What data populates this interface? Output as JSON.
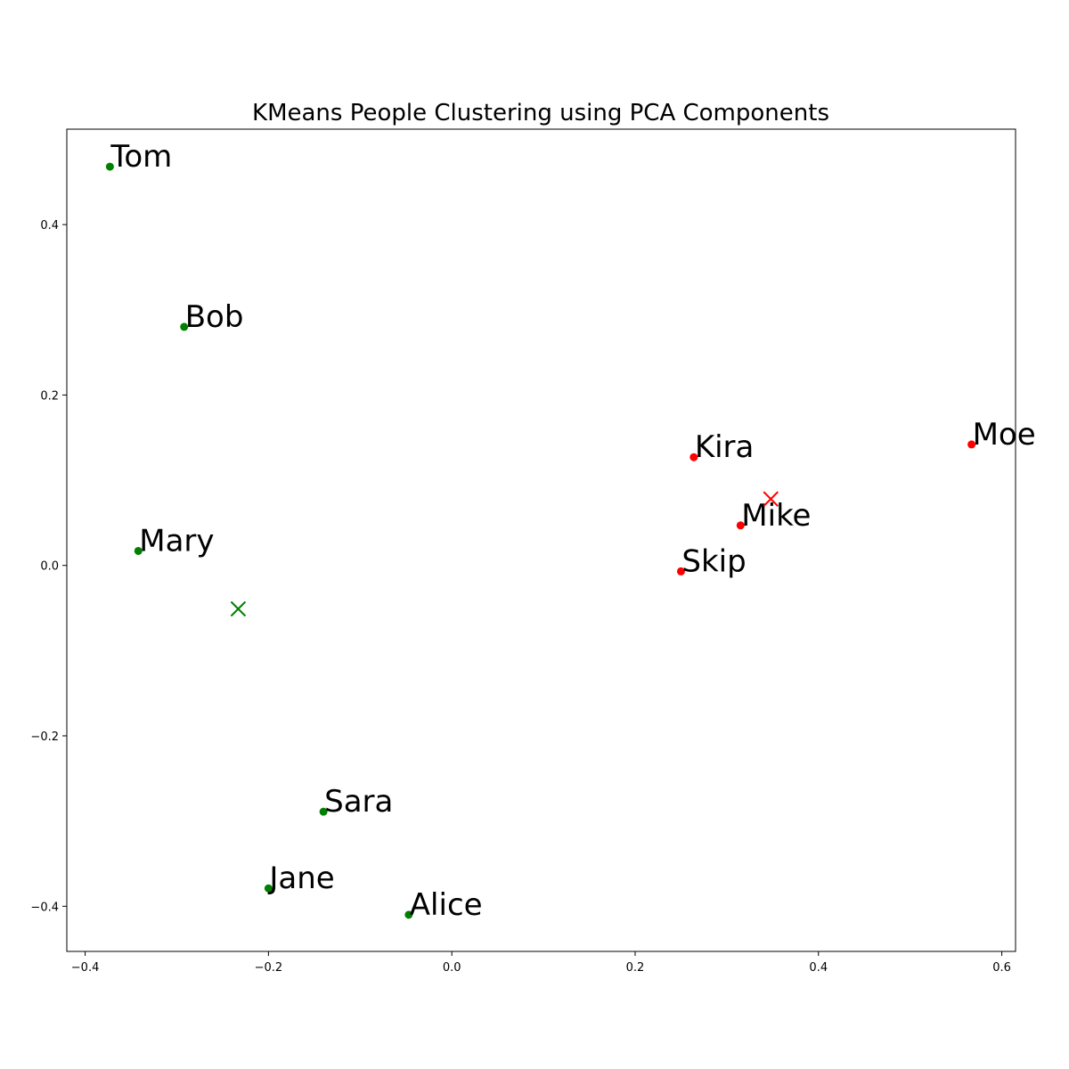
{
  "chart_data": {
    "type": "scatter",
    "title": "KMeans People Clustering using PCA Components",
    "xlabel": "",
    "ylabel": "",
    "xlim": [
      -0.42,
      0.615
    ],
    "ylim": [
      -0.453,
      0.512
    ],
    "xticks": [
      {
        "value": -0.4,
        "label": "−0.4"
      },
      {
        "value": -0.2,
        "label": "−0.2"
      },
      {
        "value": 0.0,
        "label": "0.0"
      },
      {
        "value": 0.2,
        "label": "0.2"
      },
      {
        "value": 0.4,
        "label": "0.4"
      },
      {
        "value": 0.6,
        "label": "0.6"
      }
    ],
    "yticks": [
      {
        "value": -0.4,
        "label": "−0.4"
      },
      {
        "value": -0.2,
        "label": "−0.2"
      },
      {
        "value": 0.0,
        "label": "0.0"
      },
      {
        "value": 0.2,
        "label": "0.2"
      },
      {
        "value": 0.4,
        "label": "0.4"
      }
    ],
    "grid": false,
    "colors": {
      "cluster_0": "#008000",
      "cluster_1": "#ff0000"
    },
    "points": [
      {
        "name": "Tom",
        "x": -0.373,
        "y": 0.468,
        "cluster": "cluster_0"
      },
      {
        "name": "Bob",
        "x": -0.292,
        "y": 0.28,
        "cluster": "cluster_0"
      },
      {
        "name": "Mary",
        "x": -0.342,
        "y": 0.017,
        "cluster": "cluster_0"
      },
      {
        "name": "Sara",
        "x": -0.14,
        "y": -0.289,
        "cluster": "cluster_0"
      },
      {
        "name": "Jane",
        "x": -0.2,
        "y": -0.379,
        "cluster": "cluster_0"
      },
      {
        "name": "Alice",
        "x": -0.047,
        "y": -0.41,
        "cluster": "cluster_0"
      },
      {
        "name": "Kira",
        "x": 0.264,
        "y": 0.127,
        "cluster": "cluster_1"
      },
      {
        "name": "Moe",
        "x": 0.567,
        "y": 0.142,
        "cluster": "cluster_1"
      },
      {
        "name": "Mike",
        "x": 0.315,
        "y": 0.047,
        "cluster": "cluster_1"
      },
      {
        "name": "Skip",
        "x": 0.25,
        "y": -0.007,
        "cluster": "cluster_1"
      }
    ],
    "centroids": [
      {
        "x": -0.233,
        "y": -0.051,
        "cluster": "cluster_0"
      },
      {
        "x": 0.348,
        "y": 0.078,
        "cluster": "cluster_1"
      }
    ]
  }
}
